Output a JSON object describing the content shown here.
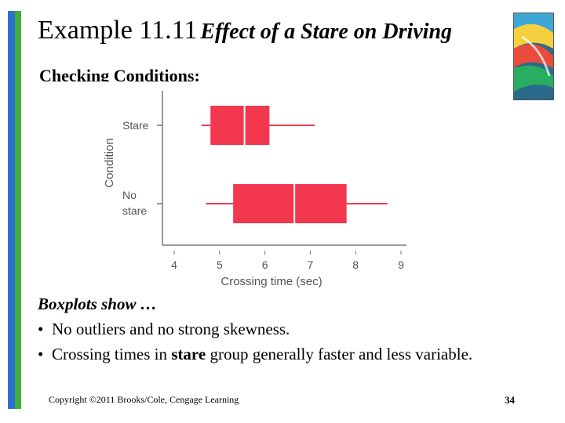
{
  "title": {
    "number": "Example 11.11",
    "subtitle": "Effect of a Stare on Driving"
  },
  "section_heading": "Checking Conditions:",
  "chart_data": {
    "type": "boxplot",
    "xlabel": "Crossing time (sec)",
    "ylabel": "Condition",
    "xlim": [
      4,
      9
    ],
    "xticks": [
      "4",
      "5",
      "6",
      "7",
      "8",
      "9"
    ],
    "series": [
      {
        "name": "Stare",
        "label_lines": [
          "Stare"
        ],
        "min": 4.6,
        "q1": 4.8,
        "median": 5.55,
        "q3": 6.1,
        "max": 7.1
      },
      {
        "name": "No stare",
        "label_lines": [
          "No",
          "stare"
        ],
        "min": 4.7,
        "q1": 5.3,
        "median": 6.65,
        "q3": 7.8,
        "max": 8.7
      }
    ],
    "color": "#f2374f"
  },
  "notes": {
    "heading": "Boxplots show …",
    "bullets": [
      [
        "No outliers and no strong skewness."
      ],
      [
        "Crossing times in ",
        "stare",
        " group generally faster and less variable."
      ]
    ]
  },
  "footer": {
    "copyright": "Copyright ©2011 Brooks/Cole, Cengage Learning",
    "page": "34"
  }
}
